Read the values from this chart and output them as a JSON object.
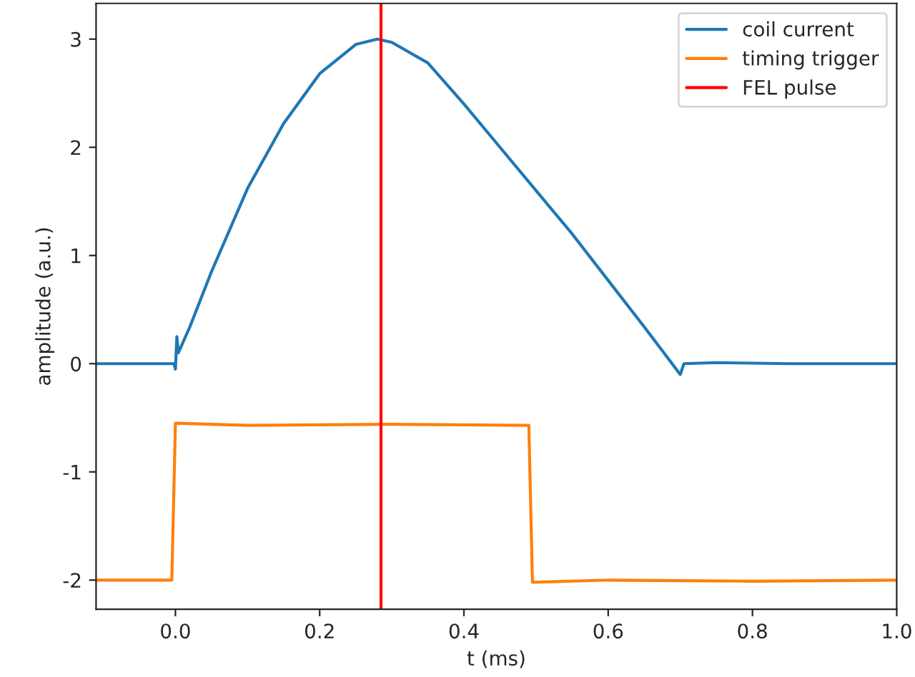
{
  "chart_data": {
    "type": "line",
    "xlabel": "t (ms)",
    "ylabel": "amplitude (a.u.)",
    "xlim": [
      -0.11,
      1.0
    ],
    "xticks": [
      {
        "value": 0.0,
        "label": "0.0"
      },
      0.2,
      0.4,
      0.6,
      0.8,
      {
        "value": 1.0,
        "label": "1.0"
      }
    ],
    "ylim": [
      -2.27,
      3.33
    ],
    "yticks": [
      -2,
      -1,
      0,
      1,
      2,
      3
    ],
    "series": [
      {
        "name": "coil current",
        "color": "#1f77b4",
        "x": [
          -0.11,
          -0.05,
          -0.002,
          0.0,
          0.002,
          0.004,
          0.02,
          0.05,
          0.1,
          0.15,
          0.2,
          0.25,
          0.28,
          0.3,
          0.35,
          0.4,
          0.45,
          0.5,
          0.55,
          0.6,
          0.65,
          0.7,
          0.705,
          0.75,
          0.85,
          1.0
        ],
        "values": [
          0.0,
          0.0,
          0.0,
          -0.05,
          0.25,
          0.1,
          0.34,
          0.85,
          1.62,
          2.22,
          2.68,
          2.95,
          3.0,
          2.97,
          2.78,
          2.4,
          2.0,
          1.6,
          1.2,
          0.77,
          0.34,
          -0.1,
          0.0,
          0.01,
          0.0,
          0.0
        ]
      },
      {
        "name": "timing trigger",
        "color": "#ff7f0e",
        "x": [
          -0.11,
          -0.005,
          0.0,
          0.1,
          0.3,
          0.49,
          0.495,
          0.6,
          0.8,
          1.0
        ],
        "values": [
          -2.0,
          -2.0,
          -0.55,
          -0.57,
          -0.56,
          -0.57,
          -2.02,
          -2.0,
          -2.01,
          -2.0
        ]
      },
      {
        "name": "FEL pulse",
        "color": "#ff0000",
        "x": [
          0.285,
          0.285
        ],
        "values": [
          -2.27,
          3.33
        ]
      }
    ],
    "legend": "top right",
    "grid": false
  }
}
